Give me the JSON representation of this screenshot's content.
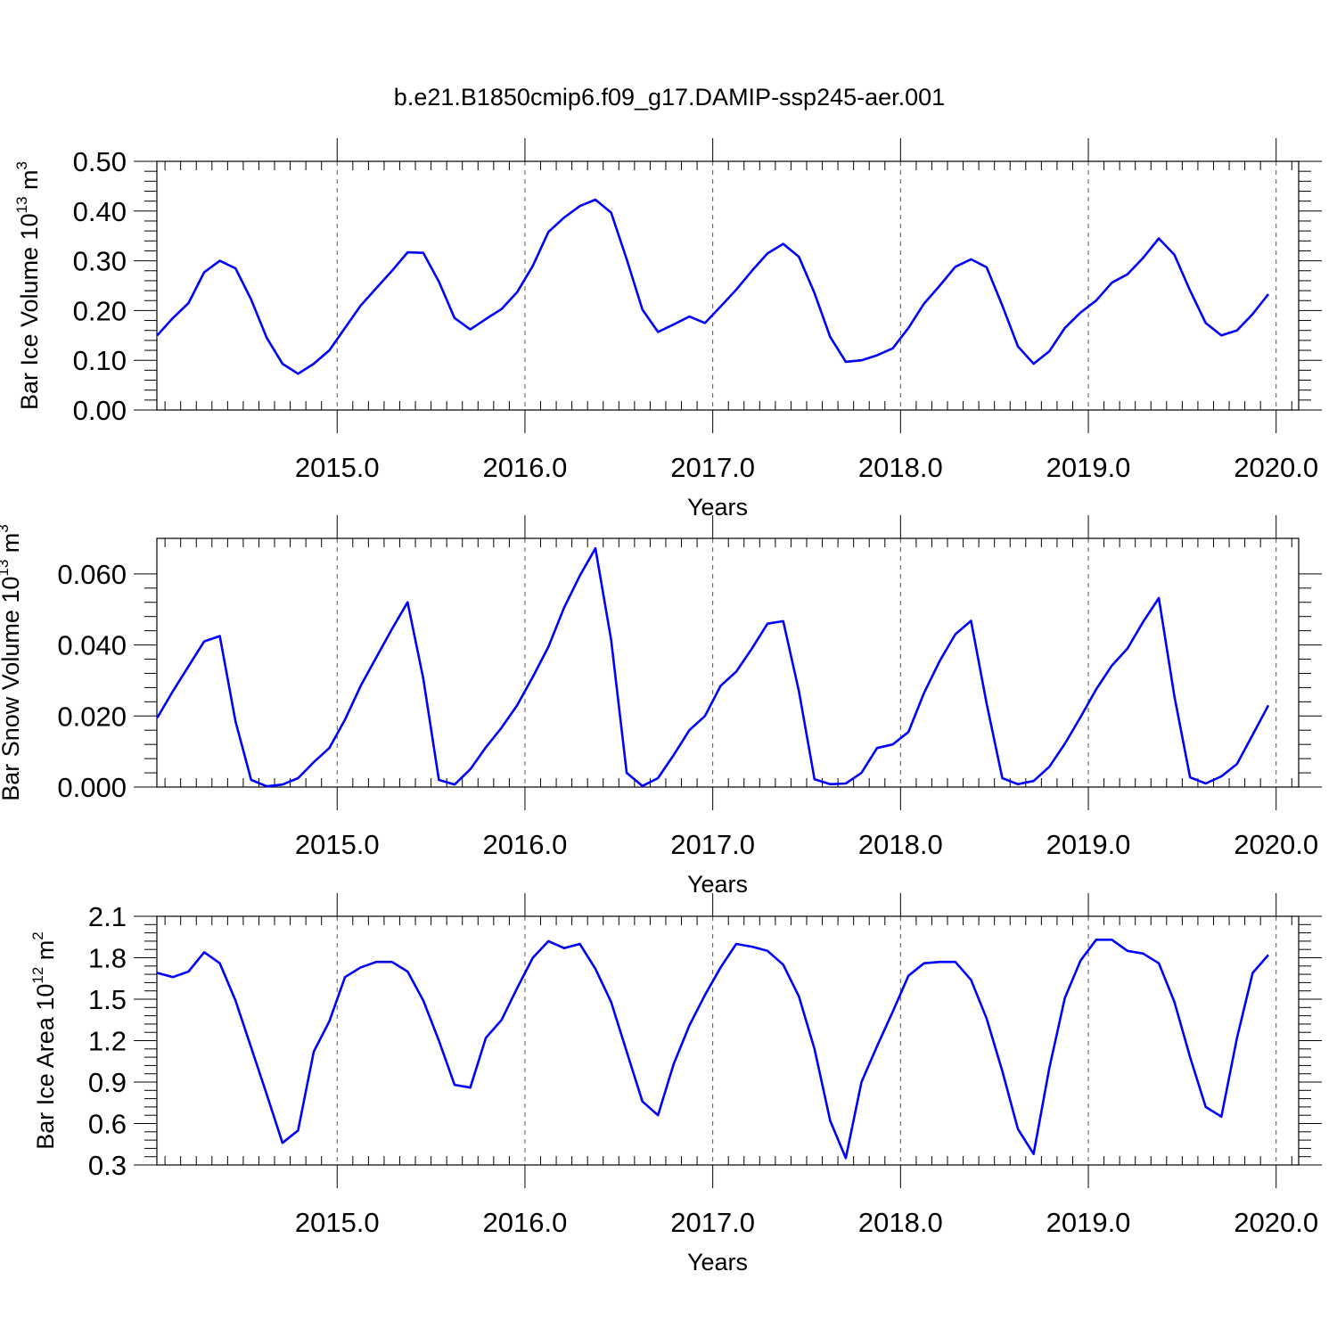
{
  "page": {
    "title": "b.e21.B1850cmip6.f09_g17.DAMIP-ssp245-aer.001"
  },
  "chart_data": [
    {
      "type": "line",
      "title": "b.e21.B1850cmip6.f09_g17.DAMIP-ssp245-aer.001",
      "xlabel": "Years",
      "ylabel": "Bar Ice Volume 10",
      "ylabel_exp": "13",
      "ylabel_unit": " m",
      "ylabel_unit_exp": "3",
      "xlim": [
        2014.04,
        2020.12
      ],
      "ylim": [
        0.0,
        0.5
      ],
      "xticks": [
        2015,
        2016,
        2017,
        2018,
        2019,
        2020
      ],
      "xtick_labels": [
        "2015.0",
        "2016.0",
        "2017.0",
        "2018.0",
        "2019.0",
        "2020.0"
      ],
      "yticks": [
        0.0,
        0.1,
        0.2,
        0.3,
        0.4,
        0.5
      ],
      "ytick_labels": [
        "0.00",
        "0.10",
        "0.20",
        "0.30",
        "0.40",
        "0.50"
      ],
      "grid": "x-major dashed",
      "color": "#0000ff",
      "x_start": 2014.042,
      "x_step": 0.08333,
      "values": [
        0.15,
        0.185,
        0.215,
        0.277,
        0.3,
        0.285,
        0.222,
        0.145,
        0.093,
        0.073,
        0.093,
        0.12,
        0.165,
        0.21,
        0.245,
        0.28,
        0.317,
        0.316,
        0.258,
        0.185,
        0.162,
        0.183,
        0.203,
        0.237,
        0.29,
        0.358,
        0.387,
        0.41,
        0.423,
        0.397,
        0.303,
        0.202,
        0.157,
        0.172,
        0.188,
        0.175,
        0.208,
        0.242,
        0.28,
        0.315,
        0.334,
        0.308,
        0.235,
        0.147,
        0.097,
        0.1,
        0.11,
        0.124,
        0.165,
        0.214,
        0.25,
        0.288,
        0.303,
        0.287,
        0.21,
        0.128,
        0.093,
        0.118,
        0.165,
        0.196,
        0.22,
        0.256,
        0.273,
        0.306,
        0.345,
        0.312,
        0.24,
        0.175,
        0.15,
        0.16,
        0.193,
        0.233
      ]
    },
    {
      "type": "line",
      "xlabel": "Years",
      "ylabel": "Bar Snow Volume 10",
      "ylabel_exp": "13",
      "ylabel_unit": " m",
      "ylabel_unit_exp": "3",
      "xlim": [
        2014.04,
        2020.12
      ],
      "ylim": [
        0.0,
        0.07
      ],
      "xticks": [
        2015,
        2016,
        2017,
        2018,
        2019,
        2020
      ],
      "xtick_labels": [
        "2015.0",
        "2016.0",
        "2017.0",
        "2018.0",
        "2019.0",
        "2020.0"
      ],
      "yticks": [
        0.0,
        0.02,
        0.04,
        0.06
      ],
      "ytick_labels": [
        "0.000",
        "0.020",
        "0.040",
        "0.060"
      ],
      "grid": "x-major dashed",
      "color": "#0000ff",
      "x_start": 2014.042,
      "x_step": 0.08333,
      "values": [
        0.0195,
        0.027,
        0.034,
        0.041,
        0.0425,
        0.0185,
        0.002,
        0.0002,
        0.0007,
        0.0025,
        0.007,
        0.011,
        0.019,
        0.0285,
        0.0365,
        0.0445,
        0.052,
        0.0305,
        0.002,
        0.0007,
        0.005,
        0.0112,
        0.0167,
        0.023,
        0.031,
        0.0395,
        0.0505,
        0.0595,
        0.0672,
        0.0415,
        0.004,
        0.0003,
        0.0025,
        0.009,
        0.016,
        0.02,
        0.0285,
        0.0325,
        0.039,
        0.046,
        0.0467,
        0.027,
        0.0022,
        0.0008,
        0.001,
        0.004,
        0.011,
        0.012,
        0.0155,
        0.0265,
        0.0355,
        0.043,
        0.0468,
        0.0235,
        0.0025,
        0.0008,
        0.0017,
        0.0057,
        0.0122,
        0.0197,
        0.0275,
        0.0342,
        0.039,
        0.0465,
        0.0532,
        0.0255,
        0.0027,
        0.001,
        0.003,
        0.0065,
        0.0147,
        0.023
      ]
    },
    {
      "type": "line",
      "xlabel": "Years",
      "ylabel": "Bar Ice Area 10",
      "ylabel_exp": "12",
      "ylabel_unit": " m",
      "ylabel_unit_exp": "2",
      "xlim": [
        2014.04,
        2020.12
      ],
      "ylim": [
        0.3,
        2.1
      ],
      "xticks": [
        2015,
        2016,
        2017,
        2018,
        2019,
        2020
      ],
      "xtick_labels": [
        "2015.0",
        "2016.0",
        "2017.0",
        "2018.0",
        "2019.0",
        "2020.0"
      ],
      "yticks": [
        0.3,
        0.6,
        0.9,
        1.2,
        1.5,
        1.8,
        2.1
      ],
      "ytick_labels": [
        "0.3",
        "0.6",
        "0.9",
        "1.2",
        "1.5",
        "1.8",
        "2.1"
      ],
      "grid": "x-major dashed",
      "color": "#0000ff",
      "x_start": 2014.042,
      "x_step": 0.08333,
      "values": [
        1.69,
        1.66,
        1.7,
        1.84,
        1.76,
        1.49,
        1.15,
        0.81,
        0.46,
        0.55,
        1.12,
        1.34,
        1.66,
        1.73,
        1.77,
        1.77,
        1.7,
        1.49,
        1.2,
        0.88,
        0.86,
        1.22,
        1.35,
        1.58,
        1.8,
        1.92,
        1.87,
        1.9,
        1.72,
        1.48,
        1.12,
        0.76,
        0.66,
        1.03,
        1.31,
        1.53,
        1.73,
        1.9,
        1.88,
        1.85,
        1.75,
        1.52,
        1.14,
        0.62,
        0.35,
        0.9,
        1.16,
        1.41,
        1.67,
        1.76,
        1.77,
        1.77,
        1.64,
        1.36,
        0.98,
        0.56,
        0.38,
        1.0,
        1.51,
        1.78,
        1.93,
        1.93,
        1.85,
        1.83,
        1.76,
        1.48,
        1.08,
        0.72,
        0.65,
        1.22,
        1.69,
        1.82
      ]
    }
  ]
}
